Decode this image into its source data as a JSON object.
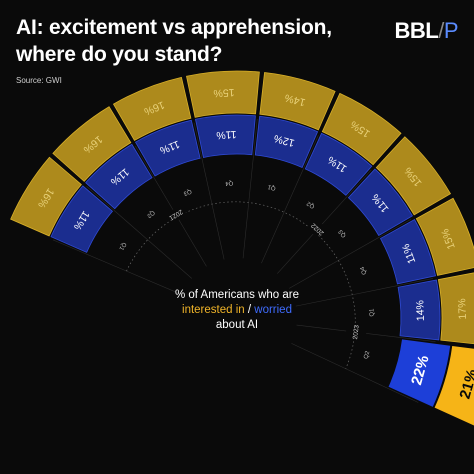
{
  "header": {
    "title": "AI: excitement vs apprehension, where do you stand?",
    "source": "Source: GWI",
    "logo_main": "BBL",
    "logo_slash": "/",
    "logo_p": "P"
  },
  "center": {
    "line1": "% of Americans who are",
    "interested": "interested in",
    "sep": " / ",
    "worried": "worried",
    "line3": "about AI"
  },
  "colors": {
    "interested": "#ad8a1c",
    "interested_highlight": "#f6b417",
    "worried": "#1b2d8f",
    "worried_highlight": "#1d3fd8",
    "background": "#0a0a0a"
  },
  "chart_data": {
    "type": "radial-bar",
    "categories": [
      "Q1 2021",
      "Q2 2021",
      "Q3 2021",
      "Q4 2021",
      "Q1 2022",
      "Q2 2022",
      "Q3 2022",
      "Q4 2022",
      "Q1 2023",
      "Q2 2023"
    ],
    "quarter_labels": [
      "Q1",
      "Q2",
      "Q3",
      "Q4",
      "Q1",
      "Q2",
      "Q3",
      "Q4",
      "Q1",
      "Q2"
    ],
    "year_labels": [
      {
        "label": "2021",
        "after_index": 1
      },
      {
        "label": "2022",
        "after_index": 5
      },
      {
        "label": "2023",
        "after_index": 8
      }
    ],
    "series": [
      {
        "name": "interested in",
        "values": [
          16,
          16,
          16,
          15,
          14,
          15,
          15,
          15,
          17,
          21
        ]
      },
      {
        "name": "worried",
        "values": [
          11,
          11,
          11,
          11,
          12,
          11,
          11,
          11,
          14,
          22
        ]
      }
    ],
    "highlight_index": 9
  }
}
